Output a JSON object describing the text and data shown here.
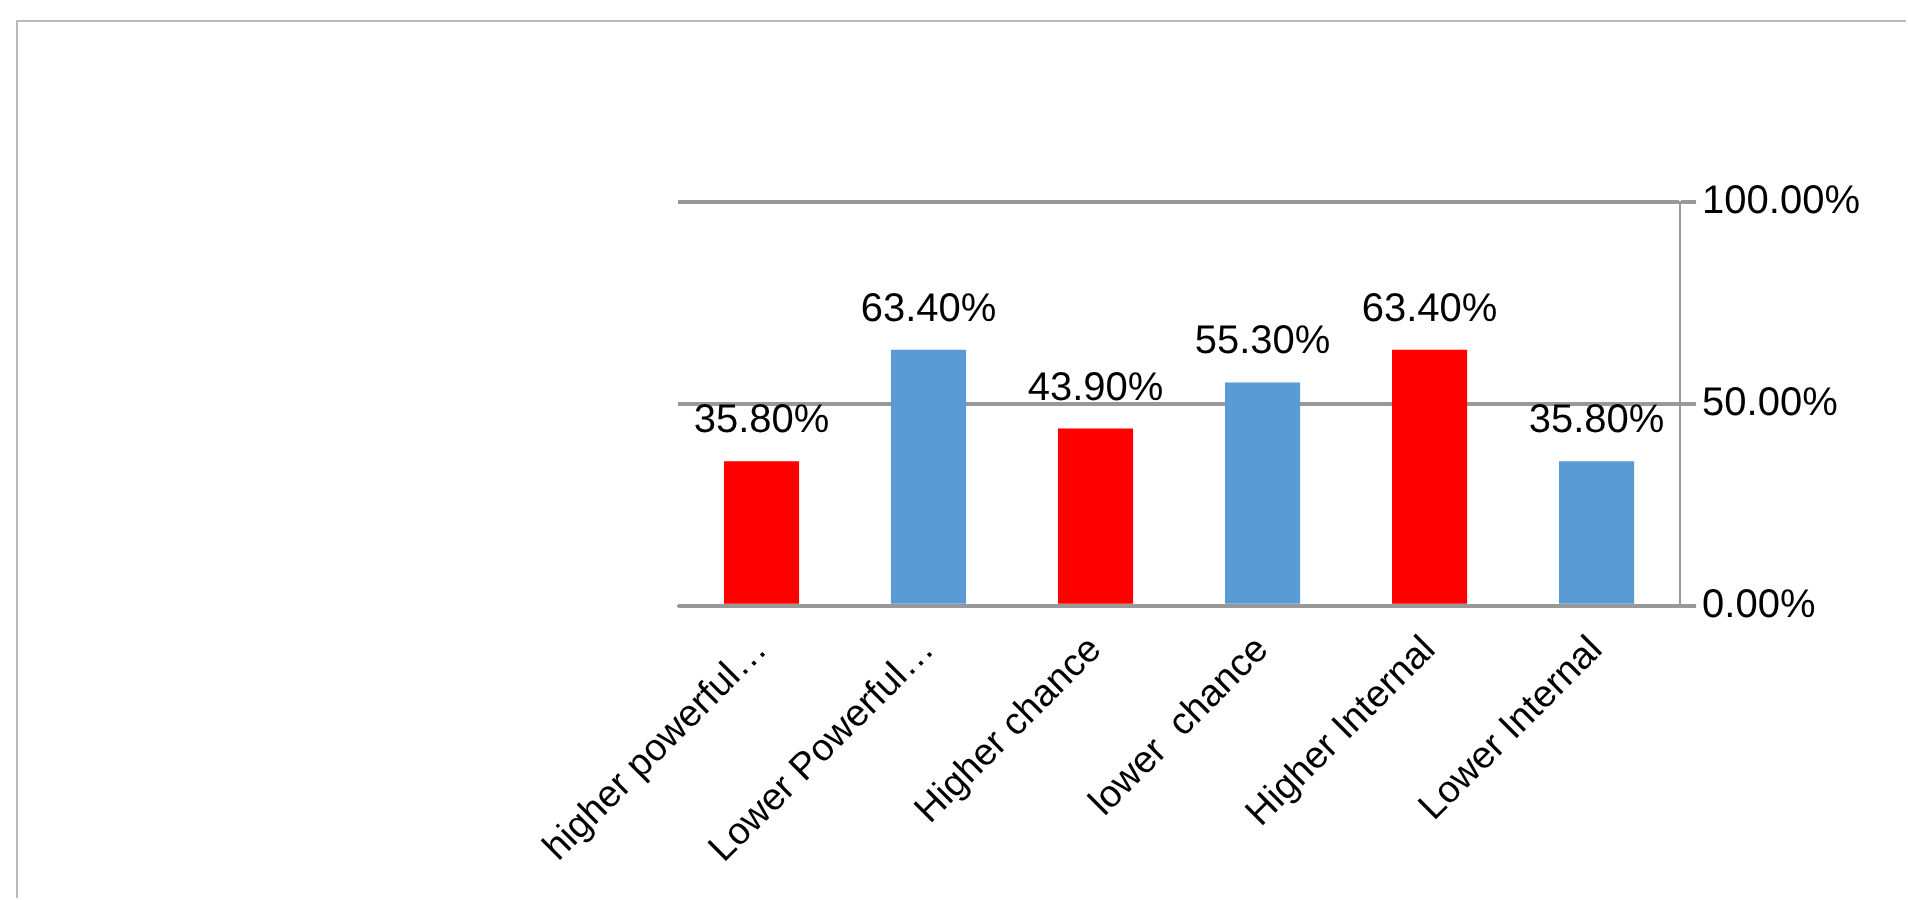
{
  "chart_data": {
    "type": "bar",
    "categories": [
      "higher powerful…",
      "Lower Powerful…",
      "Higher chance",
      "lower  chance",
      "Higher Internal",
      "Lower Internal"
    ],
    "values": [
      35.8,
      63.4,
      43.9,
      55.3,
      63.4,
      35.8
    ],
    "colors": [
      "#ff0000",
      "#5b9bd5",
      "#ff0000",
      "#5b9bd5",
      "#ff0000",
      "#5b9bd5"
    ],
    "value_labels": [
      "35.80%",
      "63.40%",
      "43.90%",
      "55.30%",
      "63.40%",
      "35.80%"
    ],
    "ylim": [
      0,
      100
    ],
    "yticks": [
      {
        "value": 0,
        "label": "0.00%"
      },
      {
        "value": 50,
        "label": "50.00%"
      },
      {
        "value": 100,
        "label": "100.00%"
      }
    ],
    "grid": "y"
  }
}
